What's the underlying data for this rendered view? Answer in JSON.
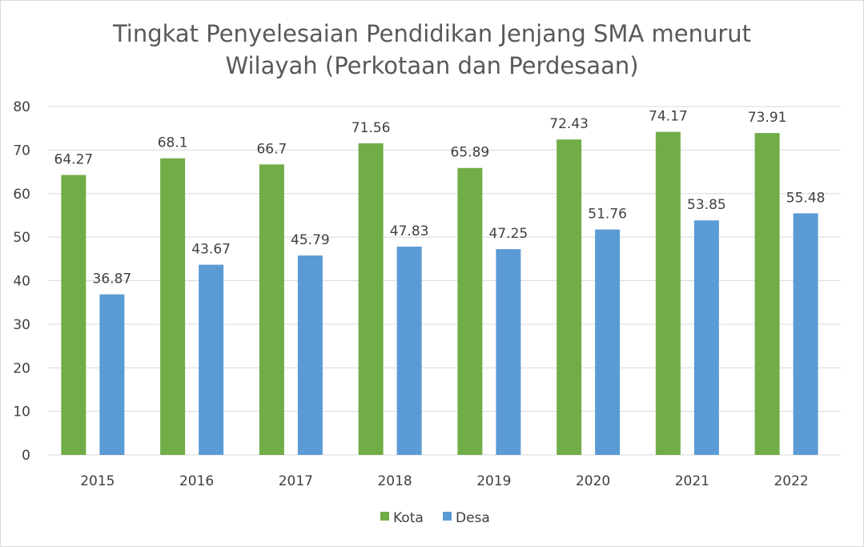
{
  "chart_data": {
    "type": "bar",
    "title_lines": [
      "Tingkat Penyelesaian Pendidikan Jenjang SMA menurut",
      "Wilayah (Perkotaan dan Perdesaan)"
    ],
    "categories": [
      "2015",
      "2016",
      "2017",
      "2018",
      "2019",
      "2020",
      "2021",
      "2022"
    ],
    "series": [
      {
        "name": "Kota",
        "color": "#70ad47",
        "values": [
          64.27,
          68.1,
          66.7,
          71.56,
          65.89,
          72.43,
          74.17,
          73.91
        ]
      },
      {
        "name": "Desa",
        "color": "#5b9bd5",
        "values": [
          36.87,
          43.67,
          45.79,
          47.83,
          47.25,
          51.76,
          53.85,
          55.48
        ]
      }
    ],
    "ylim": [
      0,
      80
    ],
    "yticks": [
      0,
      10,
      20,
      30,
      40,
      50,
      60,
      70,
      80
    ],
    "grid": true,
    "legend": "bottom",
    "data_labels": true
  }
}
